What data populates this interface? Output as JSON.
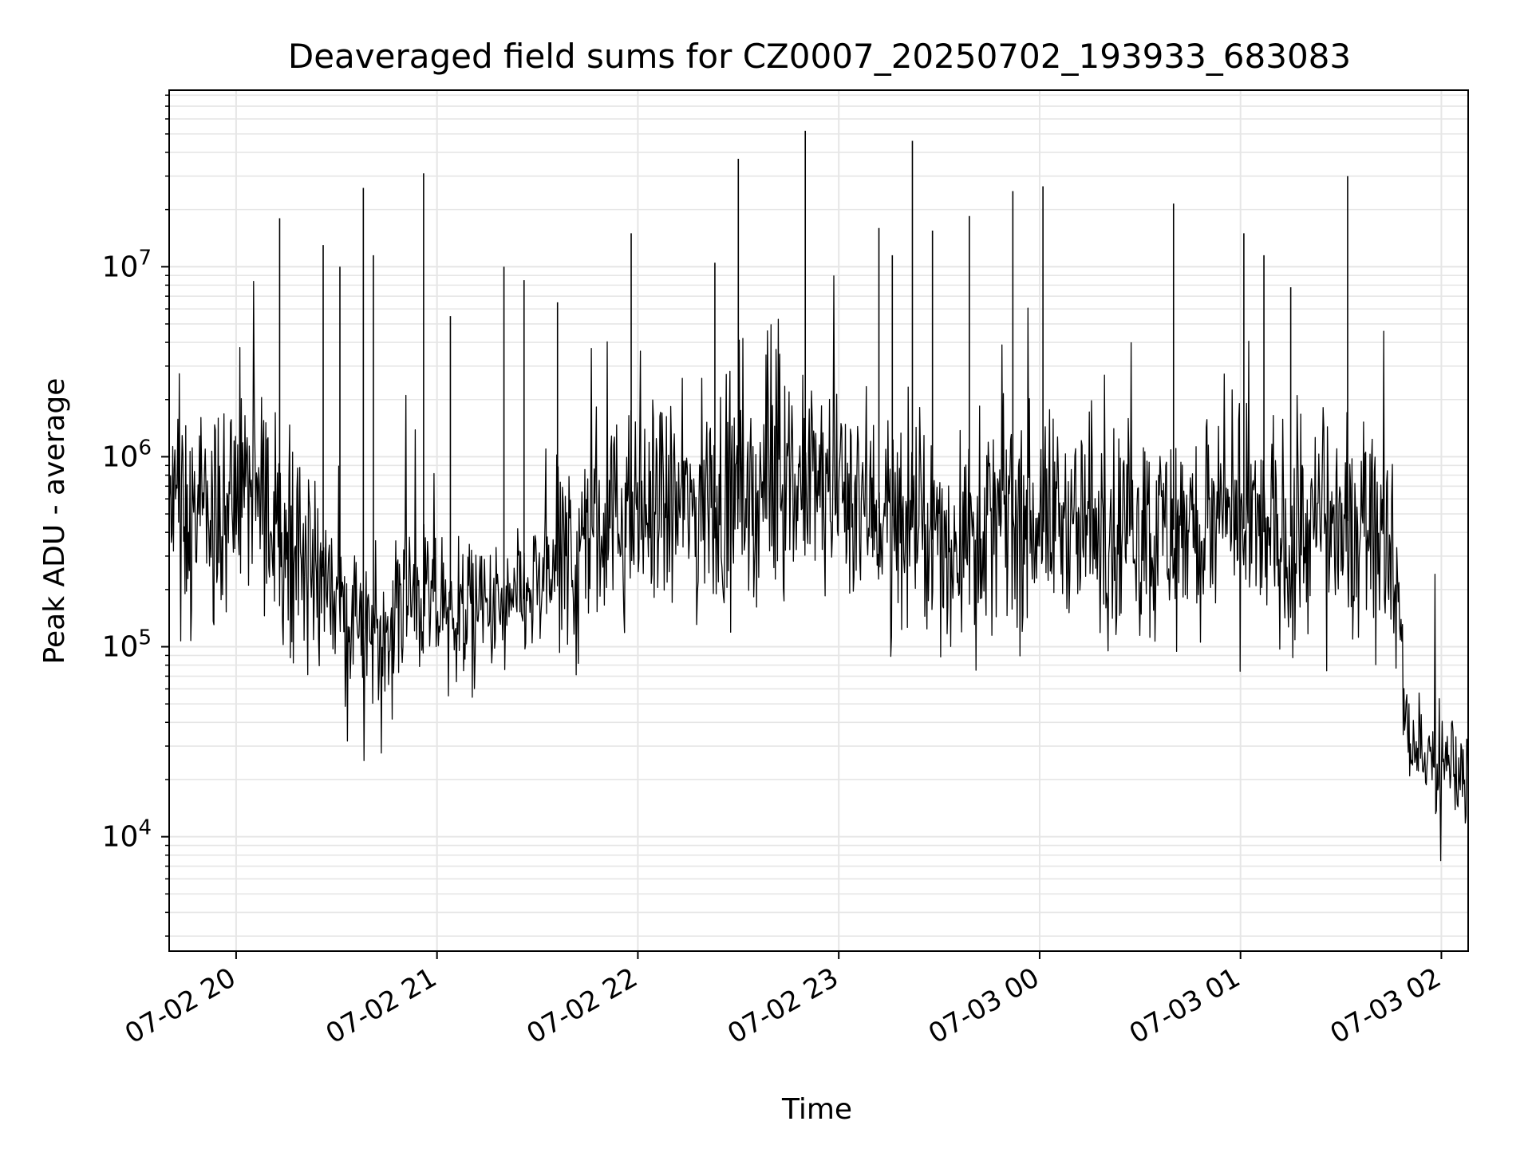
{
  "chart_data": {
    "type": "line",
    "title": "Deaveraged field sums for CZ0007_20250702_193933_683083",
    "xlabel": "Time",
    "ylabel": "Peak ADU - average",
    "yscale": "log",
    "ylim": [
      2500,
      85000000
    ],
    "xlim": [
      "2025-07-02 19:40",
      "2025-07-03 02:08"
    ],
    "grid": true,
    "line_color": "#000000",
    "x_ticks": [
      {
        "value": "2025-07-02 20:00",
        "label": "07-02 20"
      },
      {
        "value": "2025-07-02 21:00",
        "label": "07-02 21"
      },
      {
        "value": "2025-07-02 22:00",
        "label": "07-02 22"
      },
      {
        "value": "2025-07-02 23:00",
        "label": "07-02 23"
      },
      {
        "value": "2025-07-03 00:00",
        "label": "07-03 00"
      },
      {
        "value": "2025-07-03 01:00",
        "label": "07-03 01"
      },
      {
        "value": "2025-07-03 02:00",
        "label": "07-03 02"
      }
    ],
    "y_ticks": [
      {
        "value": 10000,
        "base": "10",
        "exp": "4"
      },
      {
        "value": 100000,
        "base": "10",
        "exp": "5"
      },
      {
        "value": 1000000,
        "base": "10",
        "exp": "6"
      },
      {
        "value": 10000000,
        "base": "10",
        "exp": "7"
      }
    ],
    "series": [
      {
        "x": [
          "2025-07-02 19:40",
          "2025-07-02 19:45",
          "2025-07-02 19:50",
          "2025-07-02 19:55",
          "2025-07-02 20:00",
          "2025-07-02 20:05",
          "2025-07-02 20:10",
          "2025-07-02 20:15",
          "2025-07-02 20:20",
          "2025-07-02 20:25",
          "2025-07-02 20:30",
          "2025-07-02 20:35",
          "2025-07-02 20:40",
          "2025-07-02 20:45",
          "2025-07-02 20:50",
          "2025-07-02 20:55",
          "2025-07-02 21:00",
          "2025-07-02 21:10",
          "2025-07-02 21:20",
          "2025-07-02 21:30",
          "2025-07-02 21:40",
          "2025-07-02 21:50",
          "2025-07-02 22:00",
          "2025-07-02 22:15",
          "2025-07-02 22:30",
          "2025-07-02 22:45",
          "2025-07-02 23:00",
          "2025-07-02 23:15",
          "2025-07-02 23:30",
          "2025-07-02 23:45",
          "2025-07-03 00:00",
          "2025-07-03 00:15",
          "2025-07-03 00:30",
          "2025-07-03 00:45",
          "2025-07-03 01:00",
          "2025-07-03 01:15",
          "2025-07-03 01:30",
          "2025-07-03 01:40",
          "2025-07-03 01:45",
          "2025-07-03 01:50",
          "2025-07-03 01:55",
          "2025-07-03 02:00",
          "2025-07-03 02:08"
        ],
        "y": [
          500000,
          480000,
          460000,
          520000,
          600000,
          650000,
          550000,
          400000,
          320000,
          250000,
          180000,
          130000,
          120000,
          150000,
          180000,
          170000,
          160000,
          150000,
          150000,
          200000,
          300000,
          450000,
          500000,
          550000,
          600000,
          700000,
          700000,
          500000,
          350000,
          450000,
          500000,
          450000,
          400000,
          420000,
          420000,
          380000,
          450000,
          500000,
          450000,
          35000,
          25000,
          24000,
          22000
        ]
      }
    ],
    "spikes": [
      {
        "x": "2025-07-02 20:13",
        "y": 18000000
      },
      {
        "x": "2025-07-02 20:26",
        "y": 13000000
      },
      {
        "x": "2025-07-02 20:31",
        "y": 10000000
      },
      {
        "x": "2025-07-02 20:38",
        "y": 26000000
      },
      {
        "x": "2025-07-02 20:41",
        "y": 11500000
      },
      {
        "x": "2025-07-02 20:56",
        "y": 31000000
      },
      {
        "x": "2025-07-02 21:04",
        "y": 5500000
      },
      {
        "x": "2025-07-02 21:20",
        "y": 10000000
      },
      {
        "x": "2025-07-02 21:26",
        "y": 8500000
      },
      {
        "x": "2025-07-02 21:36",
        "y": 6500000
      },
      {
        "x": "2025-07-02 21:58",
        "y": 15000000
      },
      {
        "x": "2025-07-02 22:23",
        "y": 10500000
      },
      {
        "x": "2025-07-02 22:30",
        "y": 37000000
      },
      {
        "x": "2025-07-02 22:50",
        "y": 52000000
      },
      {
        "x": "2025-07-02 23:12",
        "y": 16000000
      },
      {
        "x": "2025-07-02 23:16",
        "y": 11500000
      },
      {
        "x": "2025-07-02 23:22",
        "y": 46000000
      },
      {
        "x": "2025-07-02 23:28",
        "y": 15500000
      },
      {
        "x": "2025-07-02 23:39",
        "y": 18500000
      },
      {
        "x": "2025-07-02 23:52",
        "y": 25000000
      },
      {
        "x": "2025-07-03 00:01",
        "y": 26500000
      },
      {
        "x": "2025-07-03 00:40",
        "y": 21500000
      },
      {
        "x": "2025-07-03 01:01",
        "y": 15000000
      },
      {
        "x": "2025-07-03 01:07",
        "y": 11500000
      },
      {
        "x": "2025-07-03 01:15",
        "y": 7800000
      },
      {
        "x": "2025-07-03 01:32",
        "y": 30000000
      }
    ]
  }
}
